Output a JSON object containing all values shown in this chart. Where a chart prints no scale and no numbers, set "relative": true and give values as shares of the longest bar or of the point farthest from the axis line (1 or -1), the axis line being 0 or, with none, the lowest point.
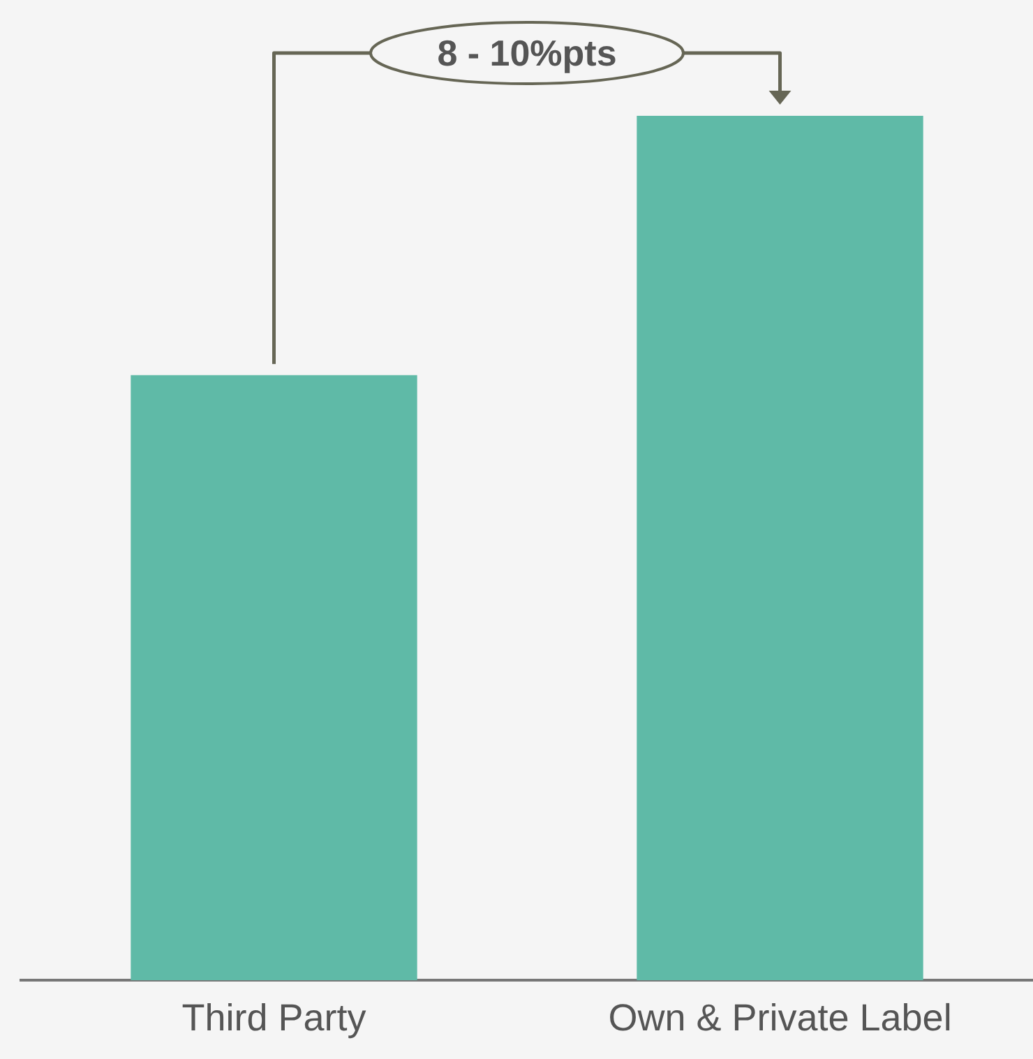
{
  "chart_data": {
    "type": "bar",
    "relative": true,
    "categories": [
      "Third Party",
      "Own & Private Label"
    ],
    "values": [
      0.7,
      1
    ],
    "color": "#5fbaa7",
    "annotations": [
      "8 - 10%pts"
    ],
    "grid": false,
    "legend": false
  }
}
